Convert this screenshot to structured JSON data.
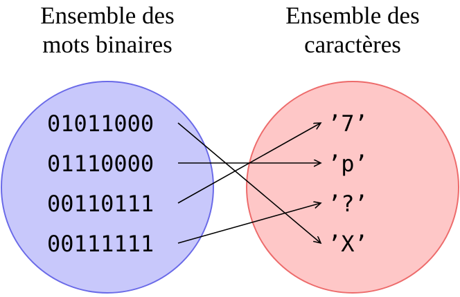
{
  "colors": {
    "left_set_fill": "#c8c8fb",
    "left_set_stroke": "#6a6ae8",
    "right_set_fill": "#fec7c7",
    "right_set_stroke": "#ed6b6b",
    "arrow": "#000000",
    "text": "#000000"
  },
  "left_set": {
    "title_line1": "Ensemble des",
    "title_line2": "mots binaires",
    "items": [
      "01011000",
      "01110000",
      "00110111",
      "00111111"
    ]
  },
  "right_set": {
    "title_line1": "Ensemble des",
    "title_line2": "caractères",
    "items": [
      "’7’",
      "’p’",
      "’?’",
      "’X’"
    ]
  },
  "mapping": [
    {
      "from": "01011000",
      "to": "’X’"
    },
    {
      "from": "01110000",
      "to": "’p’"
    },
    {
      "from": "00110111",
      "to": "’7’"
    },
    {
      "from": "00111111",
      "to": "’?’"
    }
  ]
}
